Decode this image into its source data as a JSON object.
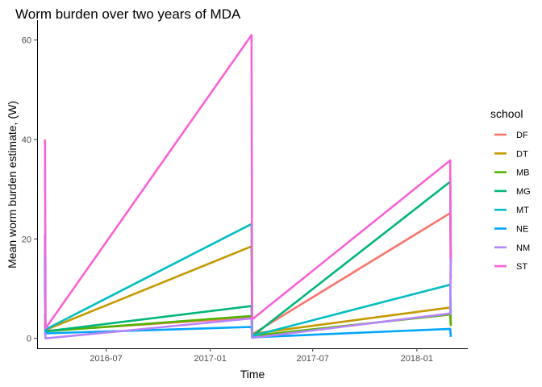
{
  "chart_data": {
    "type": "line",
    "title": "Worm burden over two years of MDA",
    "xlabel": "Time",
    "ylabel": "Mean worm burden estimate, (W)",
    "x_type": "date",
    "xlim": [
      "2016-03-01",
      "2018-04-01"
    ],
    "ylim": [
      -2,
      64
    ],
    "x_ticks": [
      {
        "date": "2016-07-01",
        "label": "2016-07"
      },
      {
        "date": "2017-01-01",
        "label": "2017-01"
      },
      {
        "date": "2017-07-01",
        "label": "2017-07"
      },
      {
        "date": "2018-01-01",
        "label": "2018-01"
      }
    ],
    "y_ticks": [
      0,
      20,
      40,
      60
    ],
    "grid": false,
    "legend": {
      "title": "school",
      "position": "right"
    },
    "series": [
      {
        "name": "DF",
        "color": "#F8766D",
        "points": [
          [
            "2016-03-15",
            4.8
          ],
          [
            "2016-03-16",
            1.5
          ],
          [
            "2017-03-15",
            4.2
          ],
          [
            "2017-03-16",
            0.8
          ],
          [
            "2018-03-01",
            25.2
          ],
          [
            "2018-03-02",
            12.0
          ]
        ]
      },
      {
        "name": "DT",
        "color": "#C49A00",
        "points": [
          [
            "2016-03-15",
            2.5
          ],
          [
            "2016-03-16",
            1.7
          ],
          [
            "2017-03-15",
            18.5
          ],
          [
            "2017-03-16",
            0.9
          ],
          [
            "2018-03-01",
            6.2
          ],
          [
            "2018-03-02",
            3.0
          ]
        ]
      },
      {
        "name": "MB",
        "color": "#53B400",
        "points": [
          [
            "2016-03-15",
            2.0
          ],
          [
            "2016-03-16",
            1.4
          ],
          [
            "2017-03-15",
            4.5
          ],
          [
            "2017-03-16",
            0.5
          ],
          [
            "2018-03-01",
            4.8
          ],
          [
            "2018-03-02",
            2.5
          ]
        ]
      },
      {
        "name": "MG",
        "color": "#00B67A",
        "points": [
          [
            "2016-03-15",
            3.0
          ],
          [
            "2016-03-16",
            1.4
          ],
          [
            "2017-03-15",
            6.5
          ],
          [
            "2017-03-16",
            0.4
          ],
          [
            "2018-03-01",
            31.5
          ],
          [
            "2018-03-02",
            15.0
          ]
        ]
      },
      {
        "name": "MT",
        "color": "#00BDC2",
        "points": [
          [
            "2016-03-15",
            5.0
          ],
          [
            "2016-03-16",
            1.8
          ],
          [
            "2017-03-15",
            23.0
          ],
          [
            "2017-03-16",
            0.5
          ],
          [
            "2018-03-01",
            10.8
          ],
          [
            "2018-03-02",
            5.0
          ]
        ]
      },
      {
        "name": "NE",
        "color": "#00A5FF",
        "points": [
          [
            "2016-03-15",
            21.0
          ],
          [
            "2016-03-15",
            10.0
          ],
          [
            "2016-03-16",
            1.0
          ],
          [
            "2017-03-15",
            2.3
          ],
          [
            "2017-03-16",
            0.2
          ],
          [
            "2018-03-01",
            1.9
          ],
          [
            "2018-03-02",
            0.3
          ]
        ]
      },
      {
        "name": "NM",
        "color": "#B983FF",
        "points": [
          [
            "2016-03-15",
            1.2
          ],
          [
            "2016-03-16",
            0.0
          ],
          [
            "2017-03-15",
            4.0
          ],
          [
            "2017-03-16",
            0.1
          ],
          [
            "2018-03-01",
            5.0
          ],
          [
            "2018-03-02",
            18.0
          ]
        ]
      },
      {
        "name": "ST",
        "color": "#FB61D7",
        "points": [
          [
            "2016-03-15",
            40.0
          ],
          [
            "2016-03-16",
            2.0
          ],
          [
            "2017-03-15",
            61.0
          ],
          [
            "2017-03-16",
            3.8
          ],
          [
            "2018-03-01",
            35.8
          ],
          [
            "2018-03-02",
            16.0
          ]
        ]
      }
    ]
  }
}
